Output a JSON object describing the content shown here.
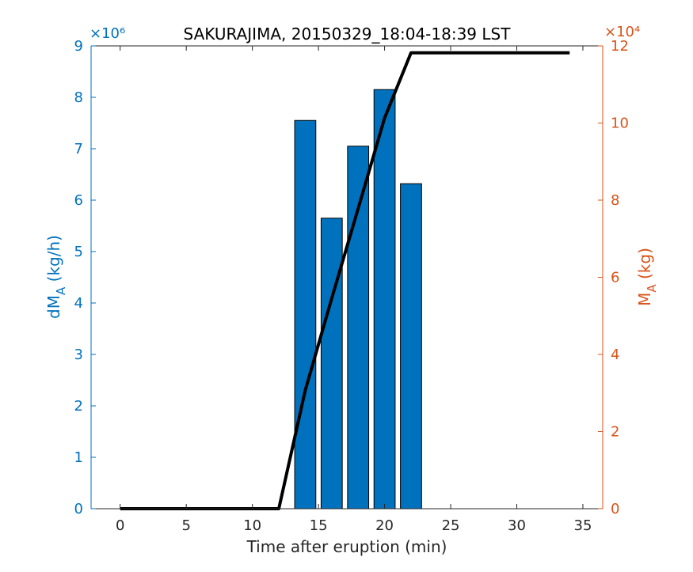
{
  "chart_data": {
    "type": "bar",
    "title": "SAKURAJIMA, 20150329_18:04-18:39 LST",
    "xlabel": "Time after eruption (min)",
    "ylabel_left": {
      "base": "dM",
      "sub": "A",
      "unit": " (kg/h)"
    },
    "ylabel_right": {
      "base": "M",
      "sub": "A",
      "unit": " (kg)"
    },
    "xlim": [
      -2.2,
      36.5
    ],
    "xticks": [
      0,
      5,
      10,
      15,
      20,
      25,
      30,
      35
    ],
    "ylim_left": [
      0,
      9
    ],
    "yticks_left": [
      0,
      1,
      2,
      3,
      4,
      5,
      6,
      7,
      8,
      9
    ],
    "exponent_left": "×10⁶",
    "ylim_right": [
      0,
      12
    ],
    "yticks_right": [
      0,
      2,
      4,
      6,
      8,
      10,
      12
    ],
    "exponent_right": "×10⁴",
    "colors": {
      "left_axis": "#0072BD",
      "right_axis": "#D95319",
      "bars": "#0072BD",
      "line": "#000000",
      "axis": "#262626"
    },
    "bar_width": 1.6,
    "series": [
      {
        "kind": "bar",
        "axis": "left",
        "x": [
          14,
          16,
          18,
          20,
          22
        ],
        "values": [
          7.55,
          5.65,
          7.05,
          8.15,
          6.32
        ]
      },
      {
        "kind": "line",
        "axis": "right",
        "x": [
          0,
          12,
          14,
          16,
          18,
          20,
          22,
          34
        ],
        "values": [
          0,
          0,
          3.07,
          5.45,
          7.78,
          10.13,
          11.82,
          11.82
        ]
      }
    ]
  }
}
